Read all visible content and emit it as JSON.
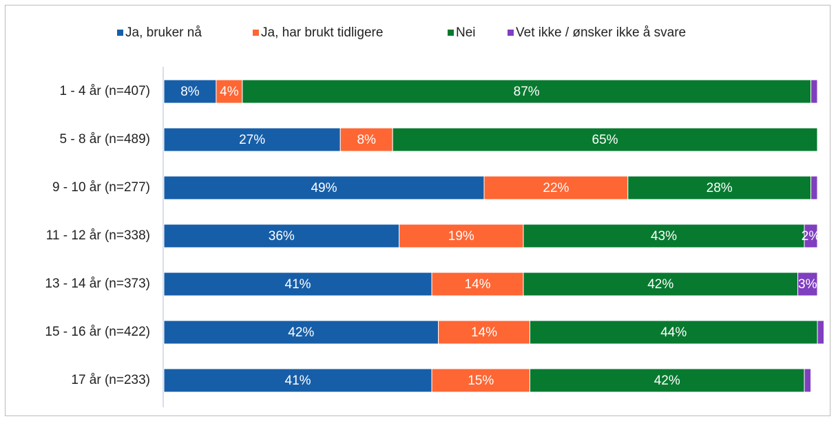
{
  "chart_data": {
    "type": "stacked-barh",
    "categories": [
      "1 - 4 år (n=407)",
      "5 - 8 år (n=489)",
      "9 - 10 år (n=277)",
      "11 - 12 år (n=338)",
      "13 - 14 år (n=373)",
      "15 - 16 år (n=422)",
      "17 år (n=233)"
    ],
    "xlim": [
      0,
      100
    ],
    "legend": "top",
    "series": [
      {
        "name": "Ja, bruker nå",
        "color": "#175ea8",
        "values": [
          8,
          27,
          49,
          36,
          41,
          42,
          41
        ],
        "value_labels": [
          "8%",
          "27%",
          "49%",
          "36%",
          "41%",
          "42%",
          "41%"
        ]
      },
      {
        "name": "Ja, har brukt tidligere",
        "color": "#fe6634",
        "values": [
          4,
          8,
          22,
          19,
          14,
          14,
          15
        ],
        "value_labels": [
          "4%",
          "8%",
          "22%",
          "19%",
          "14%",
          "14%",
          "15%"
        ]
      },
      {
        "name": "Nei",
        "color": "#087a30",
        "values": [
          87,
          65,
          28,
          43,
          42,
          44,
          42
        ],
        "value_labels": [
          "87%",
          "65%",
          "28%",
          "43%",
          "42%",
          "44%",
          "42%"
        ]
      },
      {
        "name": "Vet ikke / ønsker ikke å svare",
        "color": "#7f3fbf",
        "values": [
          1,
          0,
          1,
          2,
          3,
          1,
          1
        ],
        "value_labels": [
          null,
          null,
          null,
          "2%",
          "3%",
          null,
          null
        ]
      }
    ]
  }
}
